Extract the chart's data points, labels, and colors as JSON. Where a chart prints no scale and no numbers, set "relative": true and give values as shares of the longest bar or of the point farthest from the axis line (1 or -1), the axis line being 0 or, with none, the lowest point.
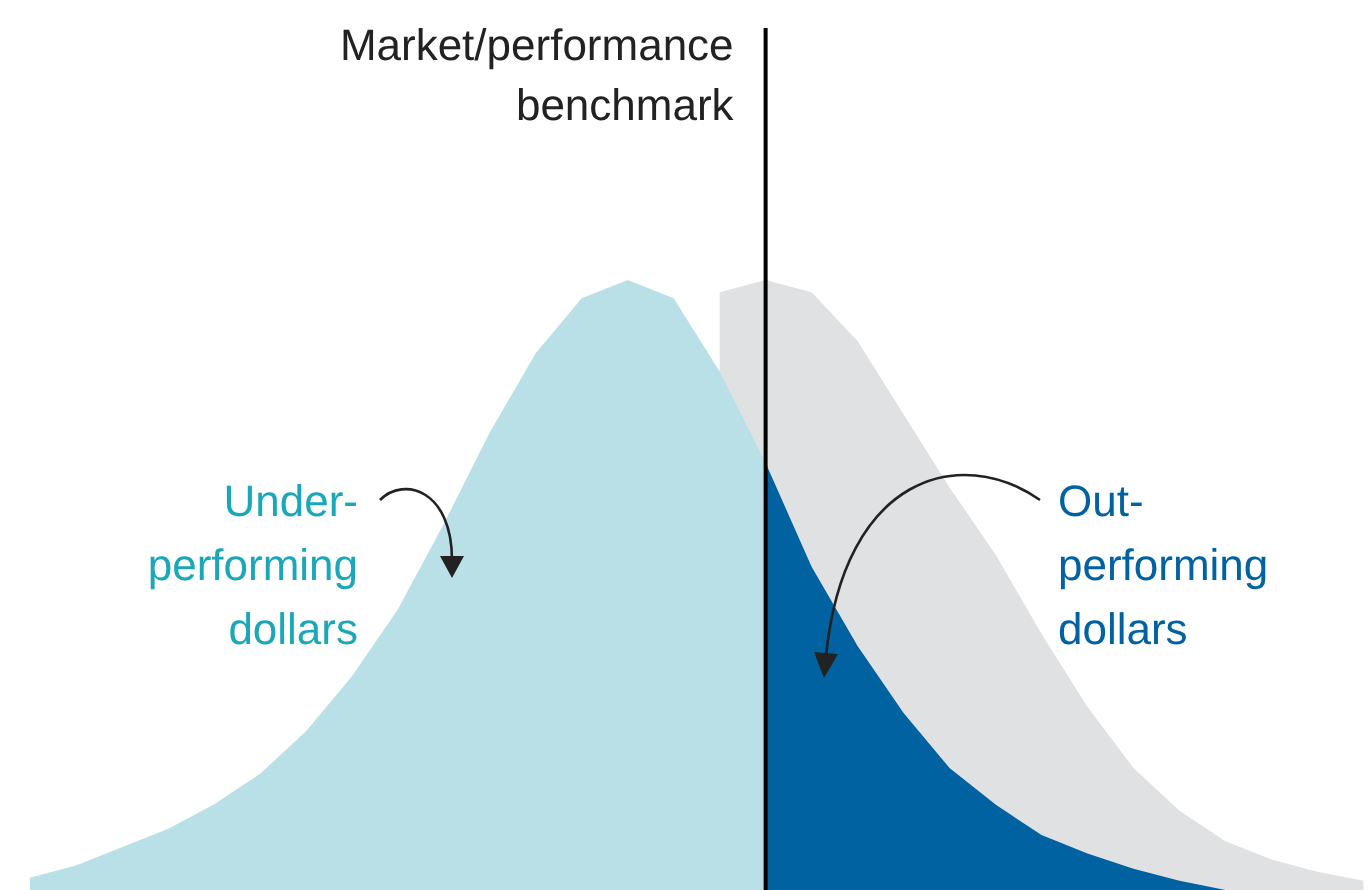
{
  "chart_data": {
    "type": "area",
    "relative": true,
    "categories": [
      null,
      null,
      null,
      null,
      null,
      null,
      null,
      null,
      null,
      null,
      null,
      null,
      null,
      null,
      null,
      null,
      null,
      null,
      null,
      null,
      null,
      null,
      null,
      null,
      null,
      null,
      null,
      null,
      null,
      null
    ],
    "series": [
      {
        "color": "#e0e1e3",
        "values": [
          null,
          null,
          null,
          null,
          null,
          null,
          null,
          null,
          null,
          null,
          null,
          null,
          null,
          null,
          null,
          0.98,
          1,
          0.98,
          0.9,
          0.78,
          0.66,
          0.55,
          0.42,
          0.3,
          0.2,
          0.13,
          0.08,
          0.05,
          0.03,
          0.015
        ]
      },
      {
        "color": "#b8e0e6",
        "values": [
          0.02,
          0.04,
          0.07,
          0.1,
          0.14,
          0.19,
          0.26,
          0.35,
          0.46,
          0.6,
          0.75,
          0.88,
          0.97,
          1,
          0.97,
          0.85,
          0.7,
          null,
          null,
          null,
          null,
          null,
          null,
          null,
          null,
          null,
          null,
          null,
          null,
          null
        ]
      },
      {
        "color": "#0062a0",
        "values": [
          null,
          null,
          null,
          null,
          null,
          null,
          null,
          null,
          null,
          null,
          null,
          null,
          null,
          null,
          null,
          null,
          0.7,
          0.53,
          0.4,
          0.29,
          0.2,
          0.14,
          0.09,
          0.06,
          0.035,
          0.015,
          0,
          null,
          null,
          null
        ]
      }
    ],
    "annotations": [
      "Market/performance benchmark",
      "Under-performing dollars",
      "Out-performing dollars"
    ]
  }
}
